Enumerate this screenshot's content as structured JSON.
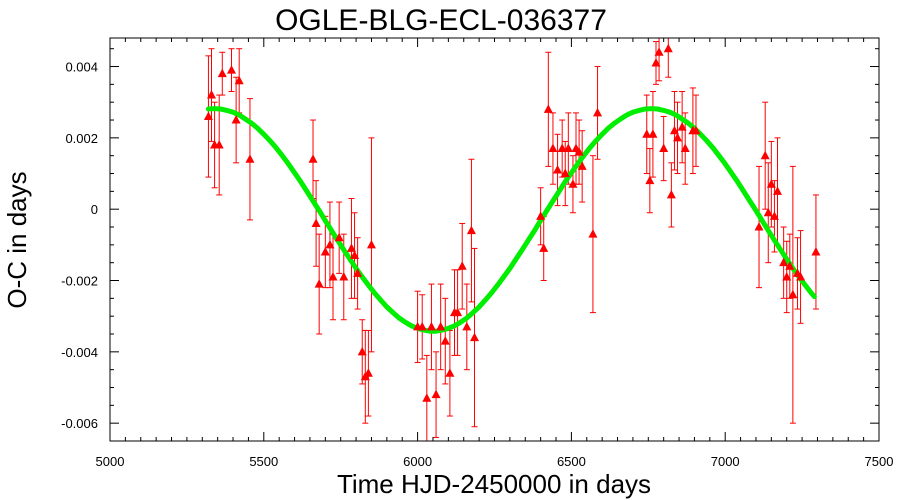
{
  "chart_data": {
    "type": "scatter",
    "title": "OGLE-BLG-ECL-036377",
    "xlabel": "Time HJD-2450000 in days",
    "ylabel": "O-C in days",
    "xlim": [
      5000,
      7500
    ],
    "ylim": [
      -0.0065,
      0.0048
    ],
    "xticks": [
      5000,
      5500,
      6000,
      6500,
      7000,
      7500
    ],
    "xtick_labels": [
      "5000",
      "5500",
      "6000",
      "6500",
      "7000",
      "7500"
    ],
    "yticks": [
      0.004,
      0.002,
      0,
      -0.002,
      -0.004,
      -0.006
    ],
    "ytick_labels": [
      "0.004",
      "0.002",
      "0",
      "-0.002",
      "-0.004",
      "-0.006"
    ],
    "grid": false,
    "colors": {
      "points": "#ff0000",
      "fit": "#00ee00",
      "axes": "#000000"
    },
    "series": [
      {
        "kind": "points_with_errorbars",
        "points": [
          {
            "x": 5320,
            "y": 0.0026,
            "err": 0.0017
          },
          {
            "x": 5330,
            "y": 0.0032,
            "err": 0.0013
          },
          {
            "x": 5340,
            "y": 0.0018,
            "err": 0.0012
          },
          {
            "x": 5355,
            "y": 0.0018,
            "err": 0.0014
          },
          {
            "x": 5365,
            "y": 0.0038,
            "err": 0.0006
          },
          {
            "x": 5395,
            "y": 0.0039,
            "err": 0.0006
          },
          {
            "x": 5410,
            "y": 0.0025,
            "err": 0.0012
          },
          {
            "x": 5420,
            "y": 0.0036,
            "err": 0.0009
          },
          {
            "x": 5455,
            "y": 0.0014,
            "err": 0.0017
          },
          {
            "x": 5660,
            "y": 0.0014,
            "err": 0.0011
          },
          {
            "x": 5670,
            "y": -0.0004,
            "err": 0.0012
          },
          {
            "x": 5680,
            "y": -0.0021,
            "err": 0.0014
          },
          {
            "x": 5700,
            "y": -0.0012,
            "err": 0.001
          },
          {
            "x": 5715,
            "y": -0.001,
            "err": 0.0012
          },
          {
            "x": 5725,
            "y": -0.0019,
            "err": 0.0012
          },
          {
            "x": 5745,
            "y": -0.0008,
            "err": 0.001
          },
          {
            "x": 5760,
            "y": -0.0019,
            "err": 0.0012
          },
          {
            "x": 5785,
            "y": -0.0011,
            "err": 0.0014
          },
          {
            "x": 5795,
            "y": -0.0013,
            "err": 0.0012
          },
          {
            "x": 5805,
            "y": -0.0018,
            "err": 0.001
          },
          {
            "x": 5820,
            "y": -0.004,
            "err": 0.0009
          },
          {
            "x": 5830,
            "y": -0.0047,
            "err": 0.0013
          },
          {
            "x": 5840,
            "y": -0.0046,
            "err": 0.0012
          },
          {
            "x": 5850,
            "y": -0.001,
            "err": 0.003
          },
          {
            "x": 6000,
            "y": -0.0033,
            "err": 0.001
          },
          {
            "x": 6015,
            "y": -0.0033,
            "err": 0.0009
          },
          {
            "x": 6030,
            "y": -0.0053,
            "err": 0.0012
          },
          {
            "x": 6045,
            "y": -0.0033,
            "err": 0.0012
          },
          {
            "x": 6060,
            "y": -0.0052,
            "err": 0.0012
          },
          {
            "x": 6075,
            "y": -0.0033,
            "err": 0.0012
          },
          {
            "x": 6090,
            "y": -0.0037,
            "err": 0.0012
          },
          {
            "x": 6105,
            "y": -0.0046,
            "err": 0.0012
          },
          {
            "x": 6120,
            "y": -0.0029,
            "err": 0.0012
          },
          {
            "x": 6130,
            "y": -0.0029,
            "err": 0.0012
          },
          {
            "x": 6145,
            "y": -0.0016,
            "err": 0.0012
          },
          {
            "x": 6160,
            "y": -0.0033,
            "err": 0.0012
          },
          {
            "x": 6175,
            "y": -0.0006,
            "err": 0.002
          },
          {
            "x": 6185,
            "y": -0.0036,
            "err": 0.0025
          },
          {
            "x": 6400,
            "y": -0.0002,
            "err": 0.0008
          },
          {
            "x": 6410,
            "y": -0.0011,
            "err": 0.0009
          },
          {
            "x": 6425,
            "y": 0.0028,
            "err": 0.0016
          },
          {
            "x": 6440,
            "y": 0.0017,
            "err": 0.001
          },
          {
            "x": 6455,
            "y": 0.0011,
            "err": 0.001
          },
          {
            "x": 6470,
            "y": 0.0017,
            "err": 0.0008
          },
          {
            "x": 6480,
            "y": 0.001,
            "err": 0.0009
          },
          {
            "x": 6490,
            "y": 0.0017,
            "err": 0.001
          },
          {
            "x": 6505,
            "y": 0.0007,
            "err": 0.0008
          },
          {
            "x": 6515,
            "y": 0.0017,
            "err": 0.001
          },
          {
            "x": 6525,
            "y": 0.0016,
            "err": 0.0009
          },
          {
            "x": 6535,
            "y": 0.0012,
            "err": 0.001
          },
          {
            "x": 6570,
            "y": -0.0007,
            "err": 0.0022
          },
          {
            "x": 6585,
            "y": 0.0027,
            "err": 0.0013
          },
          {
            "x": 6745,
            "y": 0.0021,
            "err": 0.0011
          },
          {
            "x": 6755,
            "y": 0.0008,
            "err": 0.0009
          },
          {
            "x": 6765,
            "y": 0.0021,
            "err": 0.0012
          },
          {
            "x": 6775,
            "y": 0.0041,
            "err": 0.0006
          },
          {
            "x": 6785,
            "y": 0.0044,
            "err": 0.0008
          },
          {
            "x": 6800,
            "y": 0.0017,
            "err": 0.0009
          },
          {
            "x": 6815,
            "y": 0.0045,
            "err": 0.0008
          },
          {
            "x": 6825,
            "y": 0.0004,
            "err": 0.0009
          },
          {
            "x": 6835,
            "y": 0.0022,
            "err": 0.0011
          },
          {
            "x": 6845,
            "y": 0.002,
            "err": 0.001
          },
          {
            "x": 6860,
            "y": 0.0023,
            "err": 0.001
          },
          {
            "x": 6870,
            "y": 0.0017,
            "err": 0.001
          },
          {
            "x": 6895,
            "y": 0.0022,
            "err": 0.0012
          },
          {
            "x": 6905,
            "y": 0.0022,
            "err": 0.001
          },
          {
            "x": 7110,
            "y": -0.0005,
            "err": 0.0017
          },
          {
            "x": 7130,
            "y": 0.0015,
            "err": 0.0015
          },
          {
            "x": 7140,
            "y": -0.0001,
            "err": 0.0014
          },
          {
            "x": 7150,
            "y": 0.0007,
            "err": 0.0012
          },
          {
            "x": 7160,
            "y": -0.0002,
            "err": 0.001
          },
          {
            "x": 7170,
            "y": 0.0005,
            "err": 0.0015
          },
          {
            "x": 7190,
            "y": -0.0015,
            "err": 0.001
          },
          {
            "x": 7200,
            "y": -0.0019,
            "err": 0.001
          },
          {
            "x": 7210,
            "y": -0.0016,
            "err": 0.0009
          },
          {
            "x": 7220,
            "y": -0.0024,
            "err": 0.0036
          },
          {
            "x": 7235,
            "y": -0.0018,
            "err": 0.001
          },
          {
            "x": 7245,
            "y": -0.0019,
            "err": 0.0013
          },
          {
            "x": 7295,
            "y": -0.0012,
            "err": 0.0016
          }
        ]
      },
      {
        "kind": "fit_curve",
        "x": [
          5320,
          5340,
          5360,
          5380,
          5400,
          5420,
          5440,
          5460,
          5480,
          5500,
          5520,
          5540,
          5560,
          5580,
          5600,
          5620,
          5640,
          5660,
          5680,
          5700,
          5720,
          5740,
          5760,
          5780,
          5800,
          5820,
          5840,
          5860,
          5880,
          5900,
          5920,
          5940,
          5960,
          5980,
          6000,
          6020,
          6040,
          6060,
          6080,
          6100,
          6120,
          6140,
          6160,
          6180,
          6200,
          6220,
          6240,
          6260,
          6280,
          6300,
          6320,
          6340,
          6360,
          6380,
          6400,
          6420,
          6440,
          6460,
          6480,
          6500,
          6520,
          6540,
          6560,
          6580,
          6600,
          6620,
          6640,
          6660,
          6680,
          6700,
          6720,
          6740,
          6760,
          6780,
          6800,
          6820,
          6840,
          6860,
          6880,
          6900,
          6920,
          6940,
          6960,
          6980,
          7000,
          7020,
          7040,
          7060,
          7080,
          7100,
          7120,
          7140,
          7160,
          7180,
          7200,
          7220,
          7240,
          7260,
          7280,
          7290
        ],
        "y": [
          0.00281,
          0.00282,
          0.00281,
          0.00277,
          0.00272,
          0.00264,
          0.00253,
          0.00241,
          0.00227,
          0.0021,
          0.00192,
          0.00172,
          0.0015,
          0.00127,
          0.00102,
          0.00077,
          0.0005,
          0.00023,
          -4e-05,
          -0.00032,
          -0.0006,
          -0.00087,
          -0.00114,
          -0.0014,
          -0.00166,
          -0.0019,
          -0.00213,
          -0.00235,
          -0.00255,
          -0.00274,
          -0.0029,
          -0.00305,
          -0.00317,
          -0.00327,
          -0.00334,
          -0.00339,
          -0.00342,
          -0.00342,
          -0.00339,
          -0.00334,
          -0.00327,
          -0.00317,
          -0.00305,
          -0.0029,
          -0.00274,
          -0.00255,
          -0.00235,
          -0.00213,
          -0.0019,
          -0.00166,
          -0.0014,
          -0.00114,
          -0.00087,
          -0.0006,
          -0.00032,
          -4e-05,
          0.00023,
          0.0005,
          0.00077,
          0.00102,
          0.00127,
          0.0015,
          0.00172,
          0.00192,
          0.0021,
          0.00227,
          0.00241,
          0.00253,
          0.00264,
          0.00272,
          0.00277,
          0.00281,
          0.00282,
          0.00281,
          0.00277,
          0.00272,
          0.00264,
          0.00253,
          0.00241,
          0.00227,
          0.0021,
          0.00192,
          0.00172,
          0.0015,
          0.00127,
          0.00102,
          0.00077,
          0.0005,
          0.00023,
          -4e-05,
          -0.00032,
          -0.0006,
          -0.00087,
          -0.00114,
          -0.0014,
          -0.00166,
          -0.0019,
          -0.00213,
          -0.00235,
          -0.00245
        ]
      }
    ]
  }
}
